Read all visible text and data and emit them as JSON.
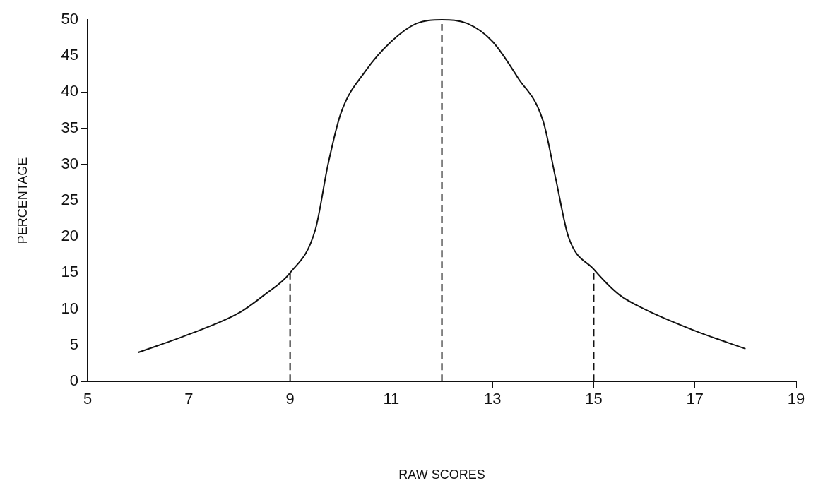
{
  "chart_data": {
    "type": "line",
    "xlabel": "RAW SCORES",
    "ylabel": "PERCENTAGE",
    "xlim": [
      5,
      19
    ],
    "xticks": [
      5,
      7,
      9,
      11,
      13,
      15,
      17,
      19
    ],
    "ylim": [
      0,
      50
    ],
    "yticks": [
      0,
      5,
      10,
      15,
      20,
      25,
      30,
      35,
      40,
      45,
      50
    ],
    "grid": false,
    "legend": false,
    "marker": "none",
    "series": [
      {
        "color": "#111111",
        "line_style": "solid",
        "x": [
          6,
          7,
          8,
          8.5,
          9,
          9.5,
          9.75,
          10,
          10.5,
          11,
          11.5,
          12,
          12.5,
          13,
          13.5,
          14,
          14.25,
          14.5,
          15,
          15.5,
          16,
          17,
          18
        ],
        "values": [
          4,
          6.5,
          9.5,
          12,
          15,
          21,
          30,
          37,
          43,
          47,
          49.5,
          50,
          49.5,
          47,
          42,
          36,
          28,
          20,
          15.5,
          12,
          10,
          7,
          4.5
        ]
      },
      {
        "color": "#111111",
        "line_style": "dashed",
        "x": [
          9,
          9
        ],
        "values": [
          0,
          15
        ]
      },
      {
        "color": "#111111",
        "line_style": "dashed",
        "x": [
          12,
          12
        ],
        "values": [
          0,
          50
        ]
      },
      {
        "color": "#111111",
        "line_style": "dashed",
        "x": [
          15,
          15
        ],
        "values": [
          0,
          15
        ]
      }
    ]
  }
}
